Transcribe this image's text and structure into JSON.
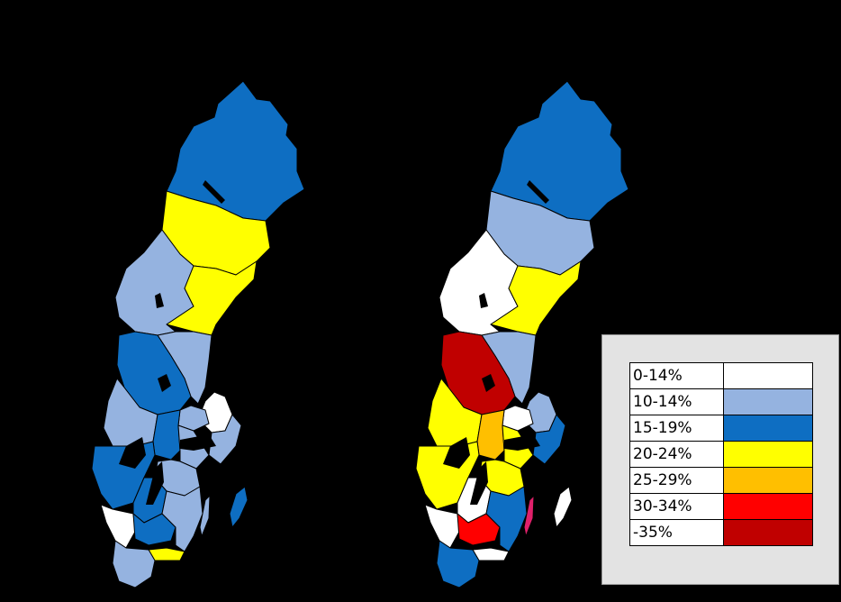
{
  "colors": {
    "background": "#000000",
    "legend_panel": "#e3e3e3",
    "border": "#000000"
  },
  "legend": {
    "items": [
      {
        "label": "0-14%",
        "color": "#ffffff"
      },
      {
        "label": "10-14%",
        "color": "#95b3e0"
      },
      {
        "label": "15-19%",
        "color": "#0e6ec2"
      },
      {
        "label": "20-24%",
        "color": "#ffff00"
      },
      {
        "label": "25-29%",
        "color": "#ffbf00"
      },
      {
        "label": "30-34%",
        "color": "#ff0000"
      },
      {
        "label": "-35%",
        "color": "#c00000"
      }
    ]
  },
  "maps": [
    {
      "name": "left-map",
      "regions": [
        {
          "id": "norrbotten",
          "color": "#0e6ec2"
        },
        {
          "id": "vasterbotten",
          "color": "#ffff00"
        },
        {
          "id": "jamtland",
          "color": "#95b3e0"
        },
        {
          "id": "vasternorrland",
          "color": "#ffff00"
        },
        {
          "id": "dalarna",
          "color": "#0e6ec2"
        },
        {
          "id": "gavleborg",
          "color": "#95b3e0"
        },
        {
          "id": "varmland",
          "color": "#95b3e0"
        },
        {
          "id": "orebro",
          "color": "#0e6ec2"
        },
        {
          "id": "vastmanland",
          "color": "#95b3e0"
        },
        {
          "id": "uppsala",
          "color": "#ffffff"
        },
        {
          "id": "stockholm",
          "color": "#95b3e0"
        },
        {
          "id": "sodermanland",
          "color": "#95b3e0"
        },
        {
          "id": "vastra-gotaland",
          "color": "#0e6ec2"
        },
        {
          "id": "ostergotland",
          "color": "#95b3e0"
        },
        {
          "id": "jonkoping",
          "color": "#0e6ec2"
        },
        {
          "id": "kronoberg",
          "color": "#0e6ec2"
        },
        {
          "id": "kalmar",
          "color": "#95b3e0"
        },
        {
          "id": "halland",
          "color": "#ffffff"
        },
        {
          "id": "blekinge",
          "color": "#ffff00"
        },
        {
          "id": "skane",
          "color": "#95b3e0"
        },
        {
          "id": "gotland",
          "color": "#0e6ec2"
        },
        {
          "id": "oland",
          "color": "#95b3e0"
        }
      ]
    },
    {
      "name": "right-map",
      "regions": [
        {
          "id": "norrbotten",
          "color": "#0e6ec2"
        },
        {
          "id": "vasterbotten",
          "color": "#95b3e0"
        },
        {
          "id": "jamtland",
          "color": "#ffffff"
        },
        {
          "id": "vasternorrland",
          "color": "#ffff00"
        },
        {
          "id": "dalarna",
          "color": "#c00000"
        },
        {
          "id": "gavleborg",
          "color": "#95b3e0"
        },
        {
          "id": "varmland",
          "color": "#ffff00"
        },
        {
          "id": "orebro",
          "color": "#ffbf00"
        },
        {
          "id": "vastmanland",
          "color": "#ffffff"
        },
        {
          "id": "uppsala",
          "color": "#95b3e0"
        },
        {
          "id": "stockholm",
          "color": "#0e6ec2"
        },
        {
          "id": "sodermanland",
          "color": "#ffff00"
        },
        {
          "id": "vastra-gotaland",
          "color": "#ffff00"
        },
        {
          "id": "ostergotland",
          "color": "#ffff00"
        },
        {
          "id": "jonkoping",
          "color": "#ffffff"
        },
        {
          "id": "kronoberg",
          "color": "#ff0000"
        },
        {
          "id": "kalmar",
          "color": "#0e6ec2"
        },
        {
          "id": "halland",
          "color": "#ffffff"
        },
        {
          "id": "blekinge",
          "color": "#ffffff"
        },
        {
          "id": "skane",
          "color": "#0e6ec2"
        },
        {
          "id": "gotland",
          "color": "#ffffff"
        },
        {
          "id": "oland",
          "color": "#e0206a"
        }
      ]
    }
  ]
}
